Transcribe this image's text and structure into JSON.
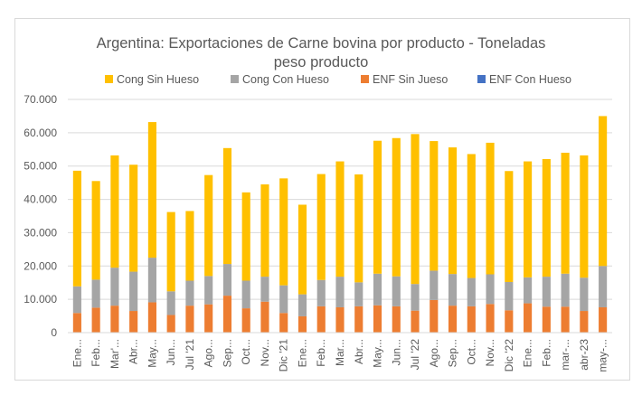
{
  "chart_data": {
    "type": "bar",
    "stacked": true,
    "title": "Argentina: Exportaciones de Carne bovina por producto - Toneladas peso producto",
    "title_lines": [
      "Argentina: Exportaciones de Carne bovina por producto - Toneladas",
      "peso producto"
    ],
    "legend_position": "top",
    "grid": true,
    "ylim": [
      0,
      70000
    ],
    "yticks": [
      "0",
      "10.000",
      "20.000",
      "30.000",
      "40.000",
      "50.000",
      "60.000",
      "70.000"
    ],
    "ytick_values": [
      0,
      10000,
      20000,
      30000,
      40000,
      50000,
      60000,
      70000
    ],
    "categories": [
      "Ene...",
      "Feb...",
      "Mar'...",
      "Abr...",
      "May...",
      "Jun...",
      "Jul '21",
      "Ago...",
      "Sep...",
      "Oct...",
      "Nov...",
      "Dic '21",
      "Ene...",
      "Feb...",
      "Mar...",
      "Abr...",
      "May...",
      "Jun...",
      "Jul '22",
      "Ago...",
      "Sep...",
      "Oct...",
      "Nov...",
      "Dic '22",
      "Ene...",
      "Feb...",
      "mar-...",
      "abr-23",
      "may-..."
    ],
    "series": [
      {
        "name": "ENF Con Hueso",
        "color": "#4472c4",
        "values": [
          100,
          100,
          100,
          100,
          100,
          100,
          100,
          100,
          100,
          100,
          100,
          100,
          100,
          100,
          100,
          100,
          100,
          100,
          100,
          100,
          100,
          100,
          100,
          100,
          100,
          100,
          100,
          100,
          100
        ]
      },
      {
        "name": "ENF Sin Jueso",
        "color": "#ed7d31",
        "values": [
          5800,
          7400,
          8000,
          6400,
          9000,
          5200,
          8000,
          8400,
          11000,
          7200,
          9200,
          5800,
          4800,
          7800,
          7500,
          7800,
          8100,
          7800,
          6500,
          9700,
          8000,
          7800,
          8500,
          6600,
          8700,
          7700,
          7700,
          6400,
          7500
        ]
      },
      {
        "name": "Cong Con Hueso",
        "color": "#a5a5a5",
        "values": [
          8000,
          8400,
          11400,
          11800,
          13400,
          7100,
          7500,
          8500,
          9500,
          8300,
          7500,
          8300,
          6600,
          7900,
          9200,
          7200,
          9500,
          9000,
          8000,
          8800,
          9500,
          8500,
          8900,
          8500,
          7800,
          9000,
          9900,
          10000,
          12400
        ]
      },
      {
        "name": "Cong Sin Hueso",
        "color": "#ffc000",
        "values": [
          34700,
          29600,
          33700,
          32100,
          40700,
          23800,
          20900,
          30300,
          34800,
          26500,
          27700,
          32100,
          26900,
          31800,
          34600,
          32400,
          39900,
          41500,
          45000,
          38900,
          38000,
          37200,
          39500,
          33300,
          34800,
          35300,
          36300,
          36700,
          45000
        ]
      }
    ]
  },
  "legend_order": [
    "Cong Sin Hueso",
    "Cong Con Hueso",
    "ENF Sin Jueso",
    "ENF Con Hueso"
  ]
}
